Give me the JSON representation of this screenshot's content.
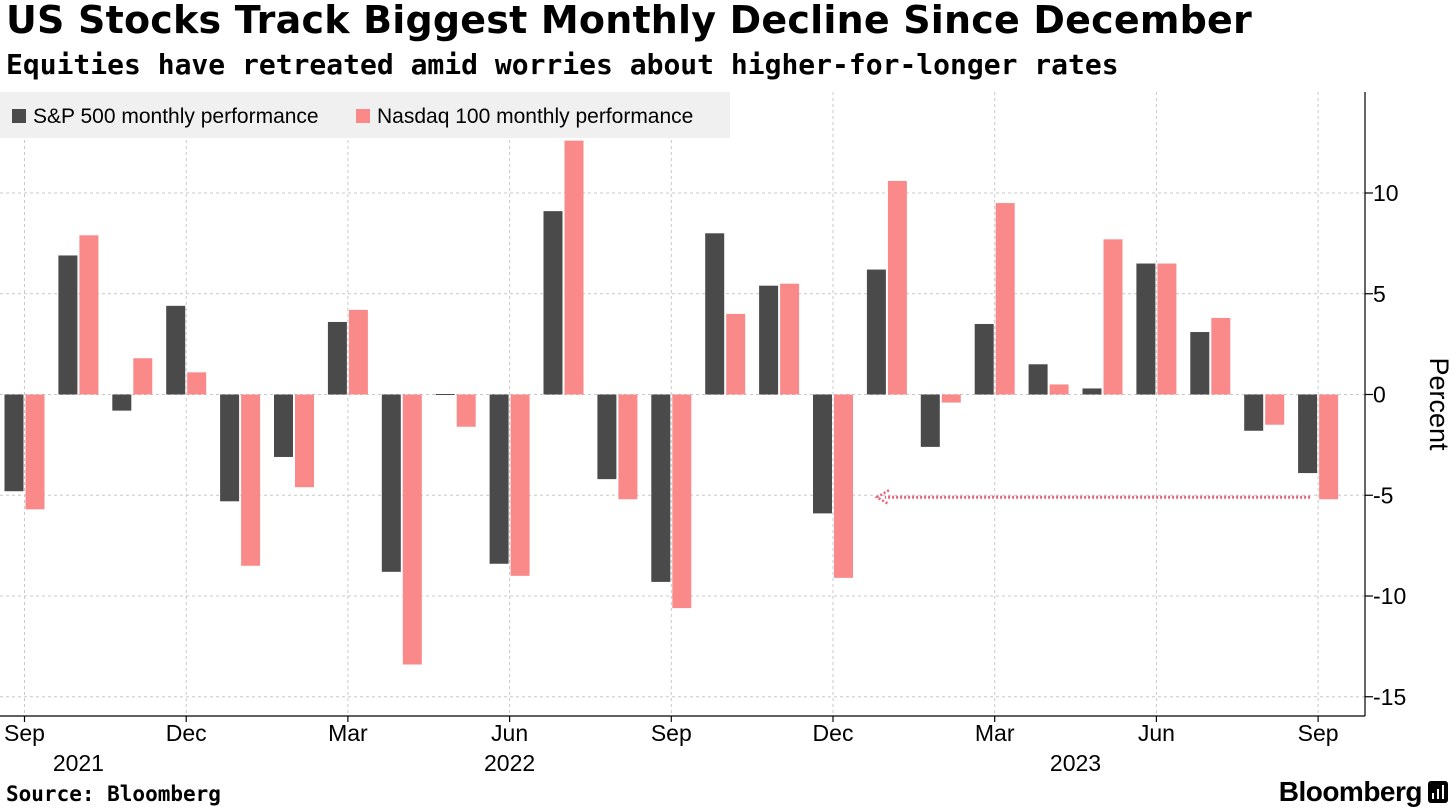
{
  "header": {
    "title": "US Stocks Track Biggest Monthly Decline Since December",
    "subtitle": "Equities have retreated amid worries about higher-for-longer rates"
  },
  "footer": {
    "source": "Source: Bloomberg",
    "brand": "Bloomberg"
  },
  "chart_data": {
    "type": "bar",
    "title": "US Stocks Track Biggest Monthly Decline Since December",
    "subtitle": "Equities have retreated amid worries about higher-for-longer rates",
    "xlabel": "",
    "ylabel": "Percent",
    "ylim": [
      -15,
      15
    ],
    "yticks": [
      10,
      5,
      0,
      -5,
      -10,
      -15
    ],
    "ytick_labels": [
      "10",
      "5",
      "0",
      "-5",
      "-10",
      "-15"
    ],
    "y_axis_side": "right",
    "grid": true,
    "legend_position": "top-left",
    "categories": [
      "Sep 2021",
      "Oct 2021",
      "Nov 2021",
      "Dec 2021",
      "Jan 2022",
      "Feb 2022",
      "Mar 2022",
      "Apr 2022",
      "May 2022",
      "Jun 2022",
      "Jul 2022",
      "Aug 2022",
      "Sep 2022",
      "Oct 2022",
      "Nov 2022",
      "Dec 2022",
      "Jan 2023",
      "Feb 2023",
      "Mar 2023",
      "Apr 2023",
      "May 2023",
      "Jun 2023",
      "Jul 2023",
      "Aug 2023",
      "Sep 2023"
    ],
    "series": [
      {
        "name": "S&P 500 monthly performance",
        "color": "#4a4a4a",
        "values": [
          -4.8,
          6.9,
          -0.8,
          4.4,
          -5.3,
          -3.1,
          3.6,
          -8.8,
          0.0,
          -8.4,
          9.1,
          -4.2,
          -9.3,
          8.0,
          5.4,
          -5.9,
          6.2,
          -2.6,
          3.5,
          1.5,
          0.3,
          6.5,
          3.1,
          -1.8,
          -3.9
        ]
      },
      {
        "name": "Nasdaq 100 monthly performance",
        "color": "#fa8a8a",
        "values": [
          -5.7,
          7.9,
          1.8,
          1.1,
          -8.5,
          -4.6,
          4.2,
          -13.4,
          -1.6,
          -9.0,
          12.6,
          -5.2,
          -10.6,
          4.0,
          5.5,
          -9.1,
          10.6,
          -0.4,
          9.5,
          0.5,
          7.7,
          6.5,
          3.8,
          -1.5,
          -5.2
        ]
      }
    ],
    "x_tick_labels": [
      {
        "month": "Sep",
        "category": "Sep 2021"
      },
      {
        "month": "Dec",
        "category": "Dec 2021"
      },
      {
        "month": "Mar",
        "category": "Mar 2022"
      },
      {
        "month": "Jun",
        "category": "Jun 2022"
      },
      {
        "month": "Sep",
        "category": "Sep 2022"
      },
      {
        "month": "Dec",
        "category": "Dec 2022"
      },
      {
        "month": "Mar",
        "category": "Mar 2023"
      },
      {
        "month": "Jun",
        "category": "Jun 2023"
      },
      {
        "month": "Sep",
        "category": "Sep 2023"
      }
    ],
    "year_labels": [
      {
        "year": "2021",
        "category": "Oct 2021"
      },
      {
        "year": "2022",
        "category": "Jun 2022"
      },
      {
        "year": "2023",
        "category": "May 2023"
      }
    ],
    "annotation": {
      "type": "dotted-arrow",
      "y": -5.1,
      "from_category": "Sep 2023",
      "to_category": "Jan 2023",
      "color": "#e8607a"
    }
  }
}
